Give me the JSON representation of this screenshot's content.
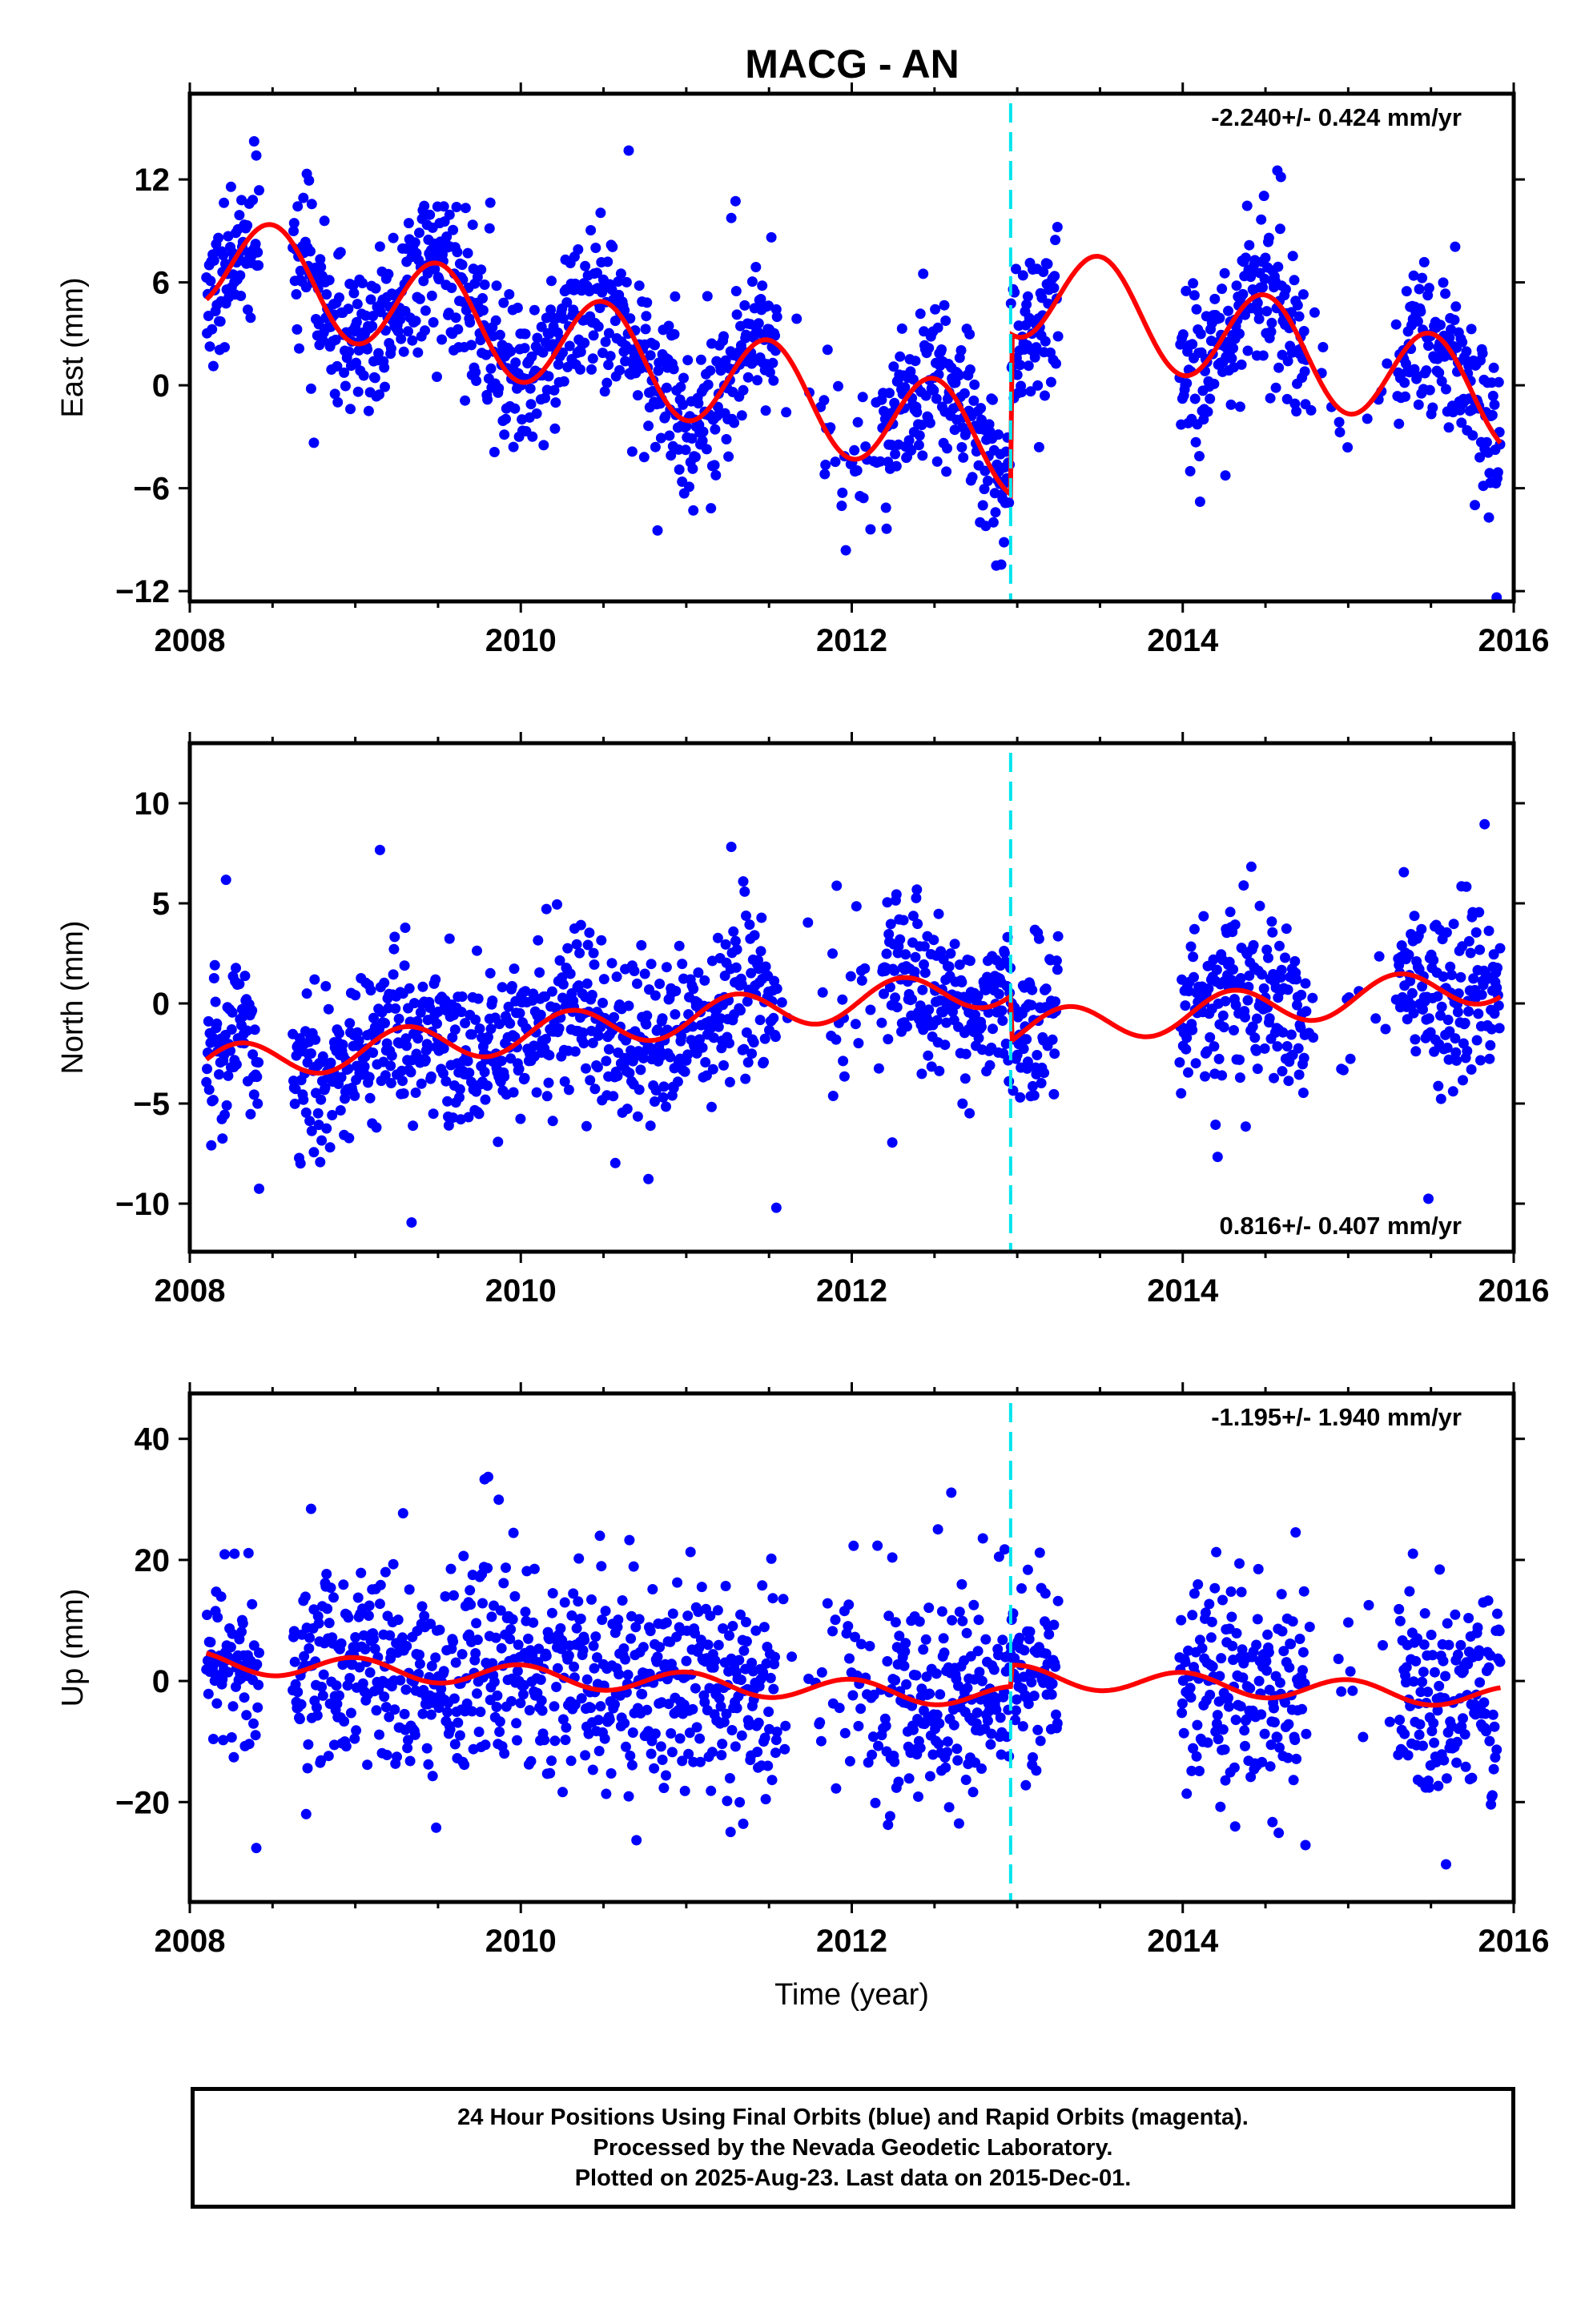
{
  "title": "MACG - AN",
  "colors": {
    "points": "#0000ff",
    "model": "#ff0000",
    "offset_line": "#00e5ee",
    "frame": "#000000"
  },
  "chart_data": [
    {
      "type": "scatter",
      "title": "MACG - AN",
      "ylabel": "East (mm)",
      "xlabel": "",
      "xlim": [
        2008,
        2016
      ],
      "ylim": [
        -12.6,
        17.0
      ],
      "x_ticks": [
        "2008",
        "2010",
        "2012",
        "2014",
        "2016"
      ],
      "y_ticks": [
        "12",
        "6",
        "0",
        "−6",
        "−12"
      ],
      "velocity_label": "-2.240+/- 0.424 mm/yr",
      "velocity_position": "top-right",
      "offset_epochs": [
        2012.96
      ],
      "series": [
        {
          "name": "24 hour positions (final orbits)",
          "kind": "points"
        },
        {
          "name": "model",
          "kind": "line"
        }
      ]
    },
    {
      "type": "scatter",
      "ylabel": "North (mm)",
      "xlabel": "",
      "xlim": [
        2008,
        2016
      ],
      "ylim": [
        -12.4,
        13.0
      ],
      "x_ticks": [
        "2008",
        "2010",
        "2012",
        "2014",
        "2016"
      ],
      "y_ticks": [
        "10",
        "5",
        "0",
        "−5",
        "−10"
      ],
      "velocity_label": "0.816+/- 0.407 mm/yr",
      "velocity_position": "bottom-right",
      "offset_epochs": [
        2012.96
      ],
      "series": [
        {
          "name": "24 hour positions (final orbits)",
          "kind": "points"
        },
        {
          "name": "model",
          "kind": "line"
        }
      ]
    },
    {
      "type": "scatter",
      "ylabel": "Up (mm)",
      "xlabel": "Time (year)",
      "xlim": [
        2008,
        2016
      ],
      "ylim": [
        -36.5,
        47.5
      ],
      "x_ticks": [
        "2008",
        "2010",
        "2012",
        "2014",
        "2016"
      ],
      "y_ticks": [
        "40",
        "20",
        "0",
        "−20"
      ],
      "velocity_label": "-1.195+/- 1.940 mm/yr",
      "velocity_position": "top-right",
      "offset_epochs": [
        2012.96
      ],
      "series": [
        {
          "name": "24 hour positions (final orbits)",
          "kind": "points"
        },
        {
          "name": "model",
          "kind": "line"
        }
      ]
    }
  ],
  "footer": {
    "line1": "24 Hour Positions Using Final Orbits (blue) and Rapid Orbits (magenta).",
    "line2": "Processed by the Nevada Geodetic Laboratory.",
    "line3": "Plotted on 2025-Aug-23. Last data on 2015-Dec-01."
  }
}
